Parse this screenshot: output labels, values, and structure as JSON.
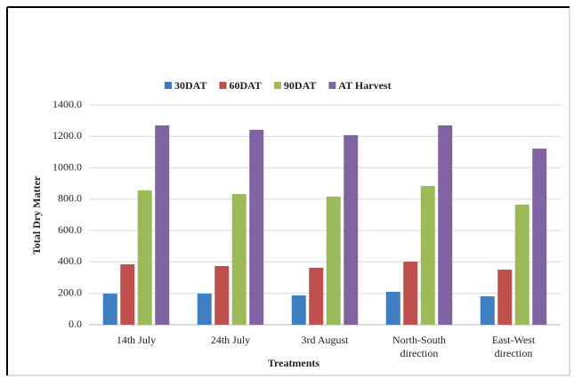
{
  "chart_data": {
    "type": "bar",
    "categories": [
      "14th July",
      "24th July",
      "3rd August",
      "North-South direction",
      "East-West direction"
    ],
    "series": [
      {
        "name": "30DAT",
        "color": "#3f7fc1",
        "values": [
          198,
          198,
          187,
          210,
          181
        ]
      },
      {
        "name": "60DAT",
        "color": "#c0504d",
        "values": [
          385,
          374,
          363,
          402,
          351
        ]
      },
      {
        "name": "90DAT",
        "color": "#9bbb59",
        "values": [
          856,
          833,
          816,
          884,
          765
        ]
      },
      {
        "name": "AT Harvest",
        "color": "#8064a2",
        "values": [
          1270,
          1242,
          1208,
          1270,
          1122
        ]
      }
    ],
    "xlabel": "Treatments",
    "ylabel": "Total  Dry Matter",
    "ylim": [
      0,
      1400
    ],
    "yticks": [
      {
        "value": 0,
        "label": "0.0"
      },
      {
        "value": 200,
        "label": "200.0"
      },
      {
        "value": 400,
        "label": "400.0"
      },
      {
        "value": 600,
        "label": "600.0"
      },
      {
        "value": 800,
        "label": "800.0"
      },
      {
        "value": 1000,
        "label": "1000.0"
      },
      {
        "value": 1200,
        "label": "1200.0"
      },
      {
        "value": 1400,
        "label": "1400.0"
      }
    ],
    "grid": true,
    "legend": "top"
  }
}
